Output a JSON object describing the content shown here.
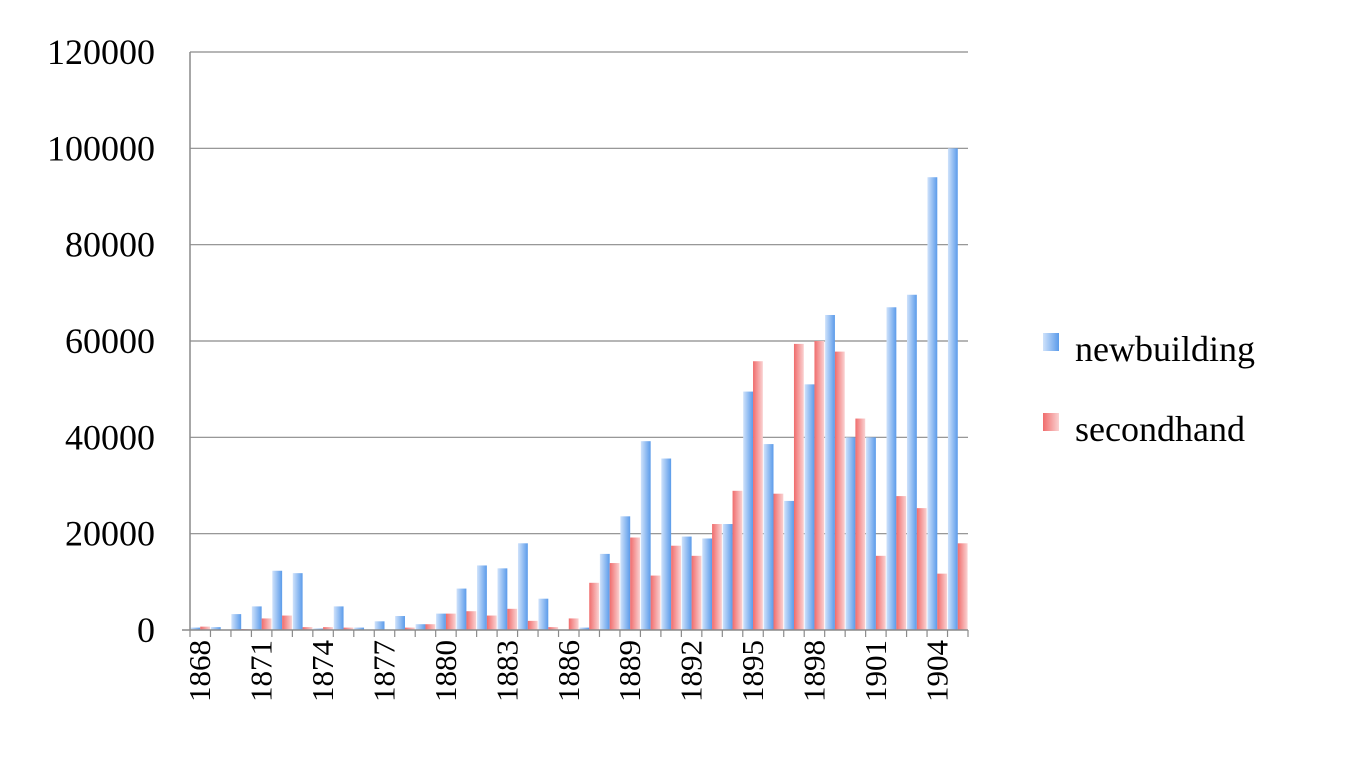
{
  "colors": {
    "newbuilding": "#5b9bea",
    "newbuilding_light": "#cfe2fb",
    "secondhand": "#f06c6c",
    "secondhand_light": "#fad2d2",
    "grid": "#8a8a8a"
  },
  "chart_data": {
    "type": "bar",
    "title": "",
    "xlabel": "",
    "ylabel": "",
    "ylim": [
      0,
      120000
    ],
    "yticks": [
      "0",
      "20000",
      "40000",
      "60000",
      "80000",
      "100000",
      "120000"
    ],
    "xtick_labels": [
      "1868",
      "1871",
      "1874",
      "1877",
      "1880",
      "1883",
      "1886",
      "1889",
      "1892",
      "1895",
      "1898",
      "1901",
      "1904"
    ],
    "grid": "horizontal",
    "legend_position": "right",
    "categories": [
      "1868",
      "1869",
      "1870",
      "1871",
      "1872",
      "1873",
      "1874",
      "1875",
      "1876",
      "1877",
      "1878",
      "1879",
      "1880",
      "1881",
      "1882",
      "1883",
      "1884",
      "1885",
      "1886",
      "1887",
      "1888",
      "1889",
      "1890",
      "1891",
      "1892",
      "1893",
      "1894",
      "1895",
      "1896",
      "1897",
      "1898",
      "1899",
      "1900",
      "1901",
      "1902",
      "1903",
      "1904",
      "1905"
    ],
    "series": [
      {
        "name": "newbuilding",
        "values": [
          500,
          600,
          3300,
          4900,
          12300,
          11800,
          300,
          4900,
          500,
          1800,
          2900,
          1200,
          3400,
          8600,
          13400,
          12800,
          18000,
          6500,
          0,
          500,
          15800,
          23600,
          39200,
          35600,
          19400,
          19000,
          22000,
          49500,
          38600,
          26800,
          51000,
          65400,
          40000,
          40000,
          67000,
          69600,
          94000,
          100000
        ]
      },
      {
        "name": "secondhand",
        "values": [
          700,
          0,
          200,
          2400,
          3000,
          600,
          600,
          500,
          0,
          0,
          500,
          1200,
          3400,
          3900,
          3000,
          4400,
          1900,
          600,
          2400,
          9800,
          13900,
          19200,
          11300,
          17500,
          15400,
          22000,
          28900,
          55800,
          28300,
          59400,
          60000,
          57800,
          43900,
          15400,
          27800,
          25300,
          11700,
          18000
        ]
      }
    ]
  }
}
